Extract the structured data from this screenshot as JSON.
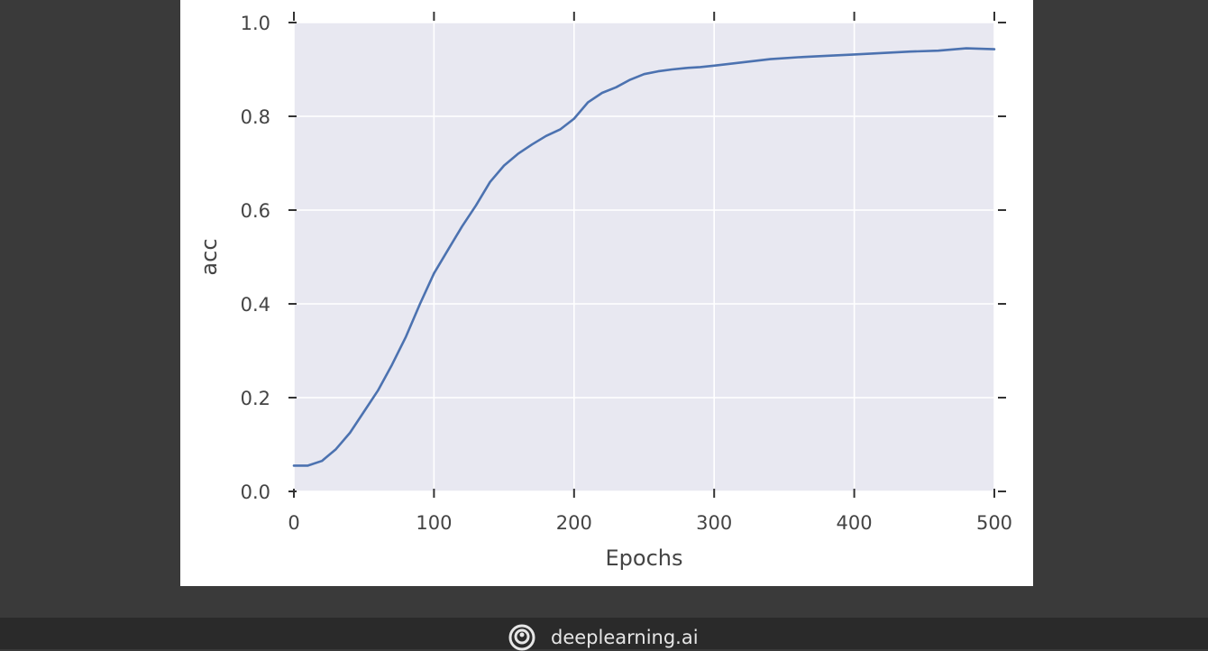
{
  "brand": {
    "name": "deeplearning.ai",
    "logo_icon": "deeplearning-logo-icon"
  },
  "colors": {
    "page_bg": "#3a3a3a",
    "plot_bg": "#e8e8f1",
    "grid": "#ffffff",
    "line": "#4c72b0",
    "text": "#444444",
    "bottom_bar": "#2a2a2a"
  },
  "chart_data": {
    "type": "line",
    "title": "",
    "xlabel": "Epochs",
    "ylabel": "acc",
    "xlim": [
      0,
      500
    ],
    "ylim": [
      0,
      1.0
    ],
    "xticks": [
      0,
      100,
      200,
      300,
      400,
      500
    ],
    "xtick_labels": [
      "0",
      "100",
      "200",
      "300",
      "400",
      "500"
    ],
    "yticks": [
      0,
      0.2,
      0.4,
      0.6,
      0.8,
      1.0
    ],
    "ytick_labels": [
      "0.0",
      "0.2",
      "0.4",
      "0.6",
      "0.8",
      "1.0"
    ],
    "grid": true,
    "legend": false,
    "series": [
      {
        "x": [
          0,
          10,
          20,
          30,
          40,
          50,
          60,
          70,
          80,
          90,
          100,
          110,
          120,
          130,
          140,
          150,
          160,
          170,
          180,
          190,
          200,
          210,
          220,
          230,
          240,
          250,
          260,
          270,
          280,
          290,
          300,
          320,
          340,
          360,
          380,
          400,
          420,
          440,
          460,
          480,
          500
        ],
        "y": [
          0.055,
          0.055,
          0.065,
          0.09,
          0.125,
          0.17,
          0.215,
          0.27,
          0.33,
          0.4,
          0.465,
          0.515,
          0.565,
          0.61,
          0.66,
          0.695,
          0.72,
          0.74,
          0.758,
          0.772,
          0.795,
          0.83,
          0.85,
          0.862,
          0.878,
          0.89,
          0.896,
          0.9,
          0.903,
          0.905,
          0.908,
          0.915,
          0.922,
          0.926,
          0.929,
          0.932,
          0.935,
          0.938,
          0.94,
          0.945,
          0.943
        ]
      }
    ]
  }
}
